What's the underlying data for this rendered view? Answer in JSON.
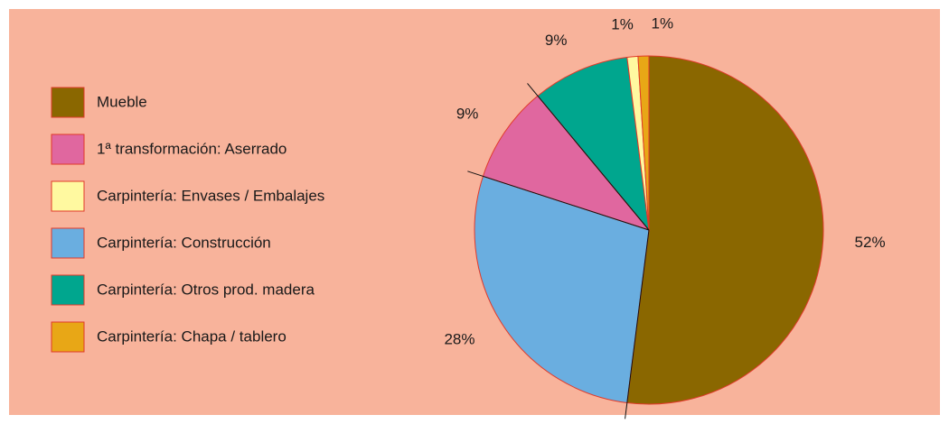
{
  "chart_data": {
    "type": "pie",
    "categories": [
      "Mueble",
      "Carpintería: Construcción",
      "1ª transformación: Aserrado",
      "Carpintería: Otros prod. madera",
      "Carpintería: Envases / Embalajes",
      "Carpintería: Chapa / tablero"
    ],
    "values": [
      52,
      28,
      9,
      9,
      1,
      1
    ],
    "value_labels": [
      "52%",
      "28%",
      "9%",
      "9%",
      "1%",
      "1%"
    ],
    "colors": [
      "#8a6700",
      "#6aaee0",
      "#e0679f",
      "#00a68e",
      "#fff9a0",
      "#e8a716"
    ],
    "legend": [
      {
        "name": "Mueble",
        "color": "#8a6700"
      },
      {
        "name": "1ª transformación: Aserrado",
        "color": "#e0679f"
      },
      {
        "name": "Carpintería: Envases / Embalajes",
        "color": "#fff9a0"
      },
      {
        "name": "Carpintería: Construcción",
        "color": "#6aaee0"
      },
      {
        "name": "Carpintería: Otros prod. madera",
        "color": "#00a68e"
      },
      {
        "name": "Carpintería: Chapa / tablero",
        "color": "#e8a716"
      }
    ]
  }
}
